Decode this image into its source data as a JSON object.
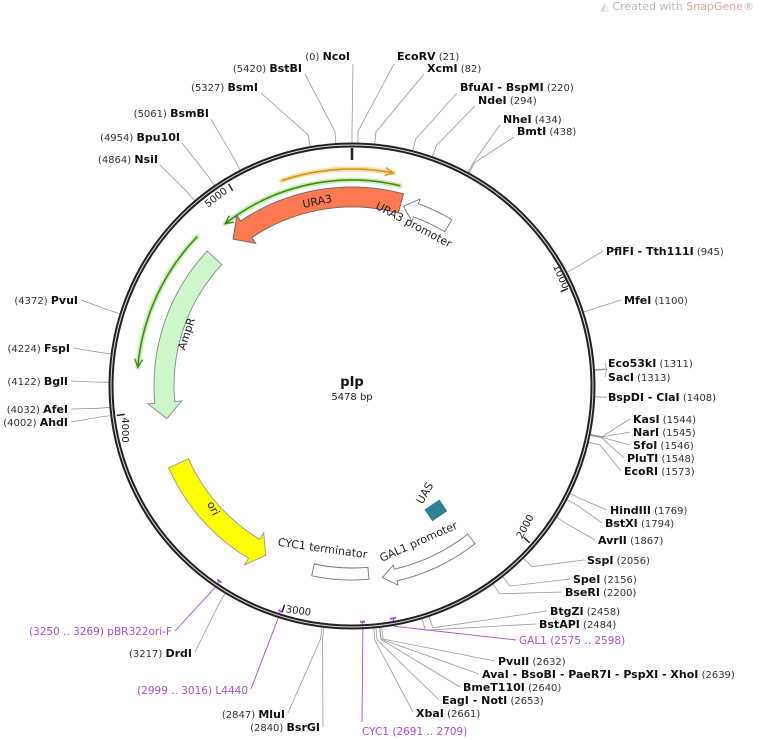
{
  "watermark": {
    "prefix": "Created with ",
    "brand": "SnapGene",
    "suffix": "®"
  },
  "plasmid": {
    "name": "pIp",
    "length": "5478 bp",
    "length_bp": 5478
  },
  "ticks": [
    "1000",
    "2000",
    "3000",
    "4000",
    "5000"
  ],
  "colors": {
    "backbone": "#222222",
    "primer": "#a64fd6",
    "ura3": "#ff7a50",
    "ampr": "#ccf7cc",
    "ori": "#ffff00",
    "uas": "#2e7f94",
    "green_line": "#3f8a1a",
    "orange_line": "#e48a1e"
  },
  "features": [
    {
      "name": "URA3"
    },
    {
      "name": "URA3 promoter"
    },
    {
      "name": "AmpR"
    },
    {
      "name": "ori"
    },
    {
      "name": "CYC1 terminator"
    },
    {
      "name": "GAL1 promoter"
    },
    {
      "name": "UAS"
    }
  ],
  "enzymes": [
    {
      "name": "NcoI",
      "position": "(0)"
    },
    {
      "name": "BstBI",
      "position": "(5420)"
    },
    {
      "name": "BsmI",
      "position": "(5327)"
    },
    {
      "name": "BsmBI",
      "position": "(5061)"
    },
    {
      "name": "Bpu10I",
      "position": "(4954)"
    },
    {
      "name": "NsiI",
      "position": "(4864)"
    },
    {
      "name": "EcoRV",
      "position": "(21)"
    },
    {
      "name": "XcmI",
      "position": "(82)"
    },
    {
      "name": "BfuAI - BspMI",
      "position": "(220)"
    },
    {
      "name": "NdeI",
      "position": "(294)"
    },
    {
      "name": "NheI",
      "position": "(434)"
    },
    {
      "name": "BmtI",
      "position": "(438)"
    },
    {
      "name": "PflFI - Tth111I",
      "position": "(945)"
    },
    {
      "name": "MfeI",
      "position": "(1100)"
    },
    {
      "name": "Eco53kI",
      "position": "(1311)"
    },
    {
      "name": "SacI",
      "position": "(1313)"
    },
    {
      "name": "BspDI - ClaI",
      "position": "(1408)"
    },
    {
      "name": "KasI",
      "position": "(1544)"
    },
    {
      "name": "NarI",
      "position": "(1545)"
    },
    {
      "name": "SfoI",
      "position": "(1546)"
    },
    {
      "name": "PluTI",
      "position": "(1548)"
    },
    {
      "name": "EcoRI",
      "position": "(1573)"
    },
    {
      "name": "HindIII",
      "position": "(1769)"
    },
    {
      "name": "BstXI",
      "position": "(1794)"
    },
    {
      "name": "AvrII",
      "position": "(1867)"
    },
    {
      "name": "SspI",
      "position": "(2056)"
    },
    {
      "name": "SpeI",
      "position": "(2156)"
    },
    {
      "name": "BseRI",
      "position": "(2200)"
    },
    {
      "name": "BtgZI",
      "position": "(2458)"
    },
    {
      "name": "BstAPI",
      "position": "(2484)"
    },
    {
      "name": "PvuII",
      "position": "(2632)"
    },
    {
      "name": "AvaI - BsoBI - PaeR7I - PspXI - XhoI",
      "position": "(2639)"
    },
    {
      "name": "BmeT110I",
      "position": "(2640)"
    },
    {
      "name": "EagI - NotI",
      "position": "(2653)"
    },
    {
      "name": "XbaI",
      "position": "(2661)"
    },
    {
      "name": "MluI",
      "position": "(2847)"
    },
    {
      "name": "BsrGI",
      "position": "(2840)"
    },
    {
      "name": "DrdI",
      "position": "(3217)"
    },
    {
      "name": "PvuI",
      "position": "(4372)"
    },
    {
      "name": "FspI",
      "position": "(4224)"
    },
    {
      "name": "BglI",
      "position": "(4122)"
    },
    {
      "name": "AfeI",
      "position": "(4032)"
    },
    {
      "name": "AhdI",
      "position": "(4002)"
    }
  ],
  "primers": [
    {
      "name": "pBR322ori-F",
      "range": "(3250 .. 3269)"
    },
    {
      "name": "L4440",
      "range": "(2999 .. 3016)"
    },
    {
      "name": "GAL1",
      "range": "(2575 .. 2598)"
    },
    {
      "name": "CYC1",
      "range": "(2691 .. 2709)"
    }
  ]
}
